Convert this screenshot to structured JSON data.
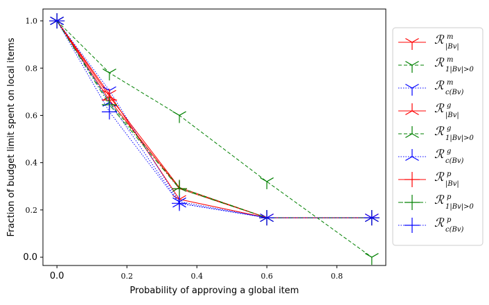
{
  "chart_data": {
    "type": "line",
    "xlabel": "Probability of approving a global item",
    "ylabel": "Fraction of budget limit spent on local items",
    "xlim": [
      -0.04,
      0.94
    ],
    "ylim": [
      -0.035,
      1.05
    ],
    "x_ticks": [
      0.0,
      0.2,
      0.4,
      0.6,
      0.8
    ],
    "x_tick_labels": [
      "0.0",
      "0.2",
      "0.4",
      "0.6",
      "0.8"
    ],
    "y_ticks": [
      0.0,
      0.2,
      0.4,
      0.6,
      0.8,
      1.0
    ],
    "y_tick_labels": [
      "0.0",
      "0.2",
      "0.4",
      "0.6",
      "0.8",
      "1.0"
    ],
    "grid": false,
    "legend_position": "right, outside plot",
    "series": [
      {
        "name": "R^m_{|B_v|}",
        "legend_base": "ℛ",
        "legend_sup": "m",
        "legend_sub": "|Bv|",
        "color": "#ff0000",
        "linestyle": "solid",
        "marker": "tri_down",
        "x": [
          0.0,
          0.15,
          0.35,
          0.6,
          0.9
        ],
        "y": [
          1.0,
          0.69,
          0.245,
          0.167,
          0.167
        ]
      },
      {
        "name": "R^m_{1_{|B_v|>0}}",
        "legend_base": "ℛ",
        "legend_sup": "m",
        "legend_sub": "1|Bv|>0",
        "color": "#008000",
        "linestyle": "dashed",
        "marker": "tri_down",
        "x": [
          0.0,
          0.15,
          0.35,
          0.6,
          0.9
        ],
        "y": [
          1.0,
          0.78,
          0.6,
          0.32,
          0.0
        ]
      },
      {
        "name": "R^m_{c(B_v)}",
        "legend_base": "ℛ",
        "legend_sup": "m",
        "legend_sub": "c(Bv)",
        "color": "#0000ff",
        "linestyle": "dotted",
        "marker": "tri_down",
        "x": [
          0.0,
          0.15,
          0.35,
          0.6,
          0.9
        ],
        "y": [
          1.0,
          0.705,
          0.235,
          0.167,
          0.167
        ]
      },
      {
        "name": "R^g_{|B_v|}",
        "legend_base": "ℛ",
        "legend_sup": "g",
        "legend_sub": "|Bv|",
        "color": "#ff0000",
        "linestyle": "solid",
        "marker": "tri_up",
        "x": [
          0.0,
          0.15,
          0.35,
          0.6,
          0.9
        ],
        "y": [
          1.0,
          0.68,
          0.295,
          0.167,
          0.167
        ]
      },
      {
        "name": "R^g_{1_{|B_v|>0}}",
        "legend_base": "ℛ",
        "legend_sup": "g",
        "legend_sub": "1|Bv|>0",
        "color": "#008000",
        "linestyle": "dashed",
        "marker": "tri_up",
        "x": [
          0.0,
          0.15,
          0.35,
          0.6,
          0.9
        ],
        "y": [
          1.0,
          0.655,
          0.295,
          0.167,
          0.167
        ]
      },
      {
        "name": "R^g_{c(B_v)}",
        "legend_base": "ℛ",
        "legend_sup": "g",
        "legend_sub": "c(Bv)",
        "color": "#0000ff",
        "linestyle": "dotted",
        "marker": "tri_up",
        "x": [
          0.0,
          0.15,
          0.35,
          0.6,
          0.9
        ],
        "y": [
          1.0,
          0.655,
          0.228,
          0.167,
          0.167
        ]
      },
      {
        "name": "R^p_{|B_v|}",
        "legend_base": "ℛ",
        "legend_sup": "p",
        "legend_sub": "|Bv|",
        "color": "#ff0000",
        "linestyle": "solid",
        "marker": "plus",
        "x": [
          0.0,
          0.15,
          0.35,
          0.6,
          0.9
        ],
        "y": [
          1.0,
          0.665,
          0.29,
          0.167,
          0.167
        ]
      },
      {
        "name": "R^p_{1_{|B_v|>0}}",
        "legend_base": "ℛ",
        "legend_sup": "p",
        "legend_sub": "1|Bv|>0",
        "color": "#008000",
        "linestyle": "dashdot",
        "marker": "plus",
        "x": [
          0.0,
          0.15,
          0.35,
          0.6,
          0.9
        ],
        "y": [
          1.0,
          0.645,
          0.29,
          0.167,
          0.167
        ]
      },
      {
        "name": "R^p_{c(B_v)}",
        "legend_base": "ℛ",
        "legend_sup": "p",
        "legend_sub": "c(Bv)",
        "color": "#0000ff",
        "linestyle": "dotted",
        "marker": "plus",
        "x": [
          0.0,
          0.15,
          0.35,
          0.6,
          0.9
        ],
        "y": [
          1.0,
          0.615,
          0.228,
          0.167,
          0.167
        ]
      }
    ]
  }
}
